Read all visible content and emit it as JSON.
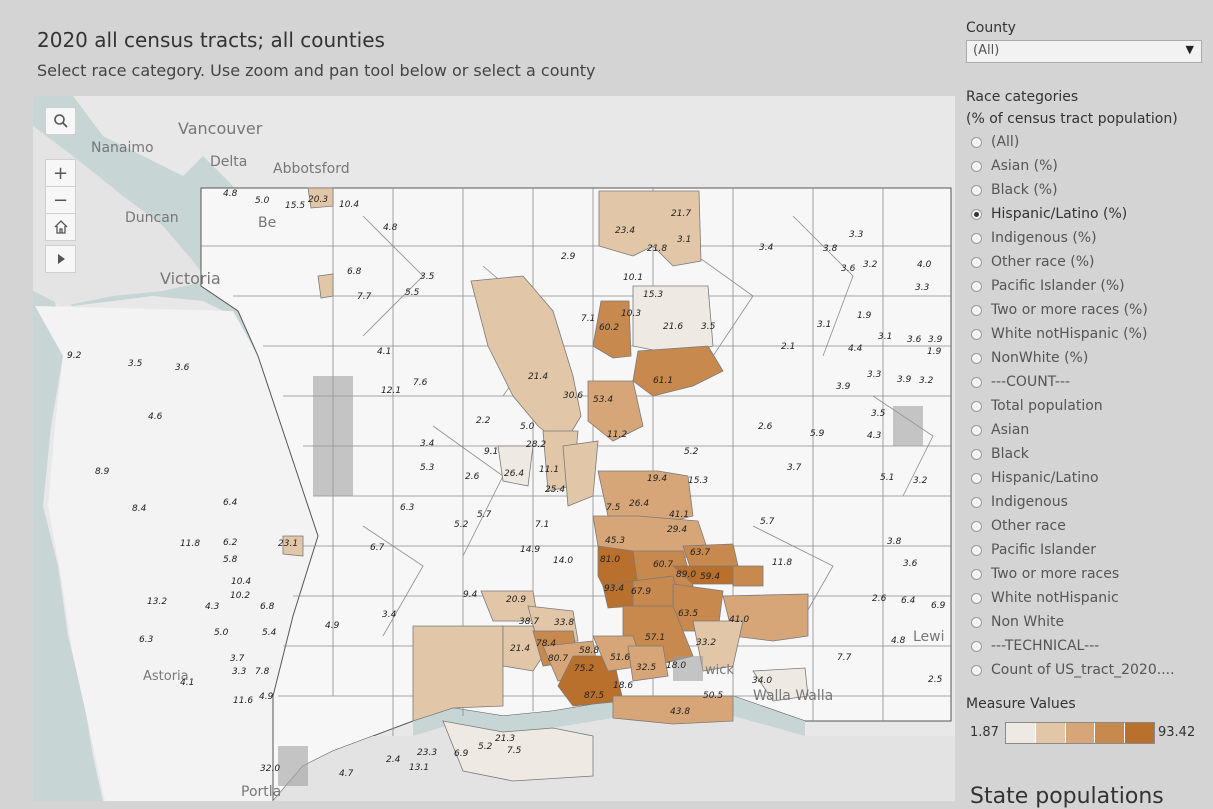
{
  "header": {
    "title": "2020 all census tracts; all counties",
    "subtitle": "Select race category. Use zoom and pan tool below or select a county"
  },
  "county_filter": {
    "label": "County",
    "value": "(All)"
  },
  "race_filter": {
    "title_line1": "Race categories",
    "title_line2": "(% of census tract population)",
    "selected": "Hispanic/Latino (%)",
    "options": [
      "(All)",
      "Asian (%)",
      "Black (%)",
      "Hispanic/Latino (%)",
      "Indigenous (%)",
      "Other race (%)",
      "Pacific Islander (%)",
      "Two or more races (%)",
      "White notHispanic (%)",
      "NonWhite (%)",
      "---COUNT---",
      "Total population",
      "Asian",
      "Black",
      "Hispanic/Latino",
      "Indigenous",
      "Other race",
      "Pacific Islander",
      "Two or more races",
      "White notHispanic",
      "Non White",
      "---TECHNICAL---",
      "Count of US_tract_2020...."
    ]
  },
  "legend": {
    "title": "Measure Values",
    "min": "1.87",
    "max": "93.42",
    "colors": [
      "#efe9e3",
      "#e2c6a8",
      "#d6a679",
      "#c8894e",
      "#b8702c"
    ]
  },
  "map_tools": {
    "search": "search-icon",
    "zoom_in": "+",
    "zoom_out": "−",
    "home": "home-icon",
    "pan": "play-icon"
  },
  "basemap_labels": {
    "vancouver": "Vancouver",
    "nanaimo": "Nanaimo",
    "delta": "Delta",
    "abbotsford": "Abbotsford",
    "duncan": "Duncan",
    "victoria": "Victoria",
    "bellingham_part": "Be",
    "astoria": "Astoria",
    "portland": "Portla",
    "walla_walla": "Walla Walla",
    "lewiston_part": "Lewi",
    "richland_part": "wick"
  },
  "tract_values": {
    "v1": "4.8",
    "v2": "5.0",
    "v3": "15.5",
    "v4": "20.3",
    "v5": "10.4",
    "v6": "4.8",
    "v7": "23.4",
    "v8": "21.7",
    "v9": "21.8",
    "v10": "3.1",
    "v11": "3.4",
    "v12": "3.8",
    "v13": "3.3",
    "v14": "2.9",
    "v15": "6.8",
    "v16": "3.5",
    "v17": "7.7",
    "v18": "5.5",
    "v19": "10.1",
    "v20": "15.3",
    "v21": "3.2",
    "v22": "3.6",
    "v23": "4.0",
    "v24": "3.3",
    "v25": "7.1",
    "v26": "60.2",
    "v27": "10.3",
    "v28": "21.6",
    "v29": "3.5",
    "v30": "3.1",
    "v31": "1.9",
    "v32": "2.1",
    "v33": "4.4",
    "v34": "3.1",
    "v35": "3.6",
    "v36": "3.9",
    "v37": "1.9",
    "v38": "21.4",
    "v39": "61.1",
    "v40": "9.2",
    "v41": "3.5",
    "v42": "3.6",
    "v43": "4.1",
    "v44": "30.6",
    "v45": "53.4",
    "v46": "3.9",
    "v47": "3.3",
    "v48": "3.9",
    "v49": "3.2",
    "v50": "4.6",
    "v51": "12.1",
    "v52": "7.6",
    "v53": "2.2",
    "v54": "5.0",
    "v55": "11.2",
    "v56": "2.6",
    "v57": "5.9",
    "v58": "3.5",
    "v59": "3.4",
    "v60": "9.1",
    "v61": "28.2",
    "v62": "8.9",
    "v63": "4.3",
    "v64": "5.3",
    "v65": "2.6",
    "v66": "26.4",
    "v67": "11.1",
    "v68": "25.4",
    "v69": "5.2",
    "v70": "19.4",
    "v71": "15.3",
    "v72": "3.7",
    "v73": "5.1",
    "v74": "3.2",
    "v75": "8.4",
    "v76": "6.3",
    "v77": "5.2",
    "v78": "5.7",
    "v79": "7.1",
    "v80": "7.5",
    "v81": "26.4",
    "v82": "45.3",
    "v83": "41.1",
    "v84": "29.4",
    "v85": "5.7",
    "v86": "3.8",
    "v87": "23.1",
    "v88": "6.7",
    "v89": "14.9",
    "v90": "14.0",
    "v91": "81.0",
    "v92": "60.7",
    "v93": "63.7",
    "v94": "89.0",
    "v95": "59.4",
    "v96": "11.8",
    "v97": "3.6",
    "v98": "13.2",
    "v99": "4.3",
    "v100": "10.2",
    "v101": "6.8",
    "v102": "9.4",
    "v103": "20.9",
    "v104": "93.4",
    "v105": "67.9",
    "v106": "63.5",
    "v107": "41.0",
    "v108": "2.6",
    "v109": "6.4",
    "v110": "6.9",
    "v111": "6.3",
    "v112": "5.0",
    "v113": "5.4",
    "v114": "4.9",
    "v115": "3.4",
    "v116": "38.7",
    "v117": "33.8",
    "v118": "57.1",
    "v119": "33.2",
    "v120": "4.8",
    "v121": "21.4",
    "v122": "78.4",
    "v123": "80.7",
    "v124": "58.8",
    "v125": "51.6",
    "v126": "32.5",
    "v127": "18.0",
    "v128": "7.7",
    "v129": "75.2",
    "v130": "34.0",
    "v131": "2.5",
    "v132": "3.3",
    "v133": "4.9",
    "v134": "87.5",
    "v135": "18.6",
    "v136": "50.5",
    "v137": "43.8",
    "v138": "11.6",
    "v139": "23.3",
    "v140": "6.9",
    "v141": "5.2",
    "v142": "21.3",
    "v143": "7.5",
    "v144": "13.1",
    "v145": "32.0",
    "v146": "4.7",
    "v147": "2.4",
    "v148": "7.8",
    "v149": "4.1",
    "v150": "10.4",
    "v151": "5.8",
    "v152": "11.8",
    "v153": "6.4",
    "v154": "6.2",
    "v155": "3.7"
  },
  "footer": {
    "state_populations": "State populations"
  }
}
